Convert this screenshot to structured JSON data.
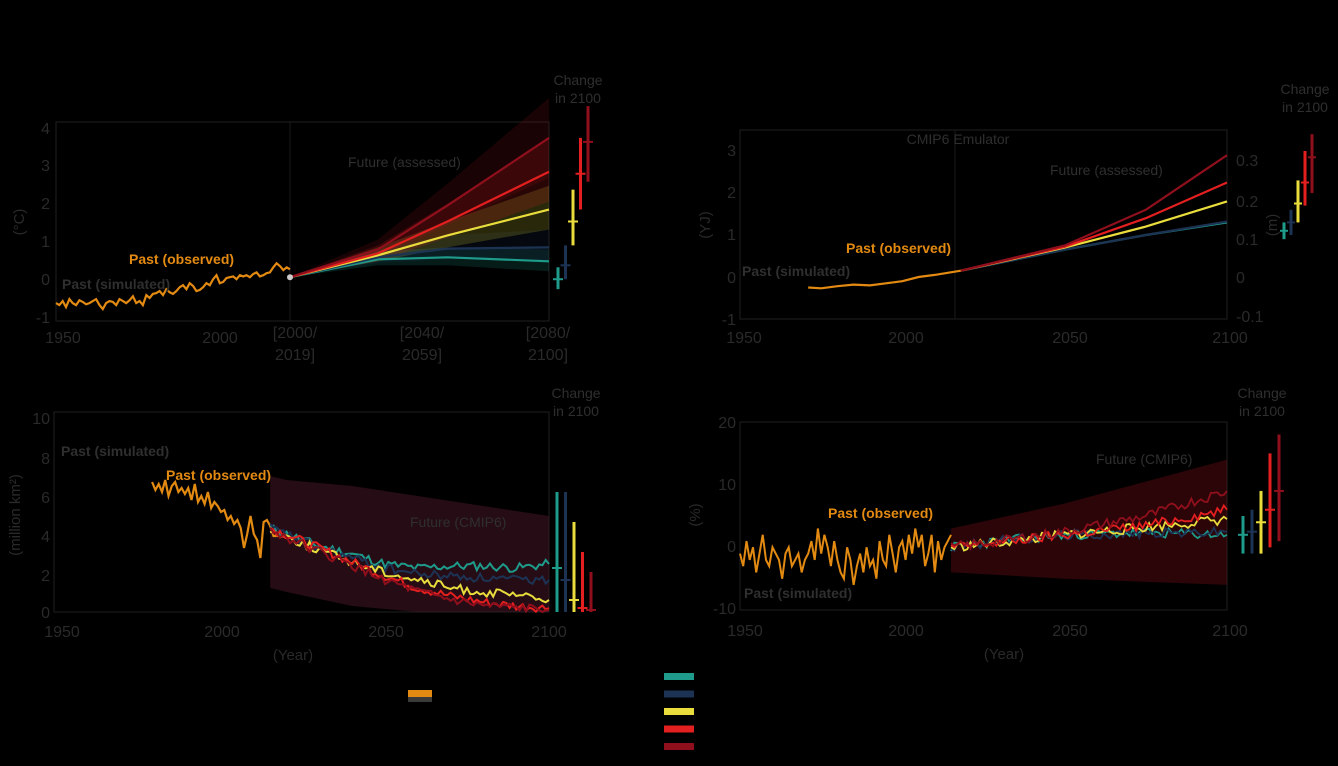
{
  "colors": {
    "observed": "#e38a12",
    "ssp119": "#1e9b8a",
    "ssp126": "#1d3354",
    "ssp245": "#e9dc3d",
    "ssp370": "#e31f1f",
    "ssp585": "#8f0f1c",
    "text": "#2a2a2a",
    "axis": "#1a1a1a"
  },
  "legend": {
    "observed_swatch": "observed",
    "swatches": [
      "ssp119",
      "ssp126",
      "ssp245",
      "ssp370",
      "ssp585"
    ]
  },
  "chart_data": [
    {
      "type": "line",
      "panel": "a",
      "ylabel": "(°C)",
      "ylim": [
        -1,
        4
      ],
      "yticks": [
        "4",
        "3",
        "2",
        "1",
        "0",
        "-1"
      ],
      "xticks_main": [
        "1950",
        "2000"
      ],
      "xticks_periods": [
        [
          "[2000/",
          "2019]"
        ],
        [
          "[2040/",
          "2059]"
        ],
        [
          "[2080/",
          "2100]"
        ]
      ],
      "change_label": [
        "Change",
        "in 2100"
      ],
      "annotations": {
        "past_observed": "Past (observed)",
        "past_simulated": "Past (simulated)",
        "future": "Future (assessed)"
      },
      "observed": {
        "x_start": 1950,
        "x_end": 2020,
        "y": [
          -0.55,
          -0.6,
          -0.5,
          -0.65,
          -0.45,
          -0.55,
          -0.6,
          -0.48,
          -0.52,
          -0.58,
          -0.55,
          -0.5,
          -0.45,
          -0.6,
          -0.7,
          -0.55,
          -0.5,
          -0.52,
          -0.6,
          -0.45,
          -0.5,
          -0.55,
          -0.48,
          -0.38,
          -0.55,
          -0.5,
          -0.6,
          -0.35,
          -0.42,
          -0.32,
          -0.3,
          -0.25,
          -0.35,
          -0.2,
          -0.28,
          -0.32,
          -0.25,
          -0.15,
          -0.1,
          -0.2,
          -0.05,
          -0.12,
          -0.25,
          -0.22,
          -0.15,
          -0.05,
          -0.1,
          0.05,
          0.15,
          -0.05,
          -0.02,
          0.08,
          0.1,
          0.12,
          0.05,
          0.15,
          0.12,
          0.15,
          0.1,
          0.18,
          0.22,
          0.12,
          0.15,
          0.2,
          0.22,
          0.35,
          0.45,
          0.38,
          0.28,
          0.35,
          0.3
        ]
      },
      "scenarios": [
        {
          "key": "ssp119",
          "x": [
            2020,
            2040,
            2060,
            2100
          ],
          "y": [
            0.1,
            0.55,
            0.6,
            0.5
          ],
          "band": [
            [
              0.1,
              0.1
            ],
            [
              0.4,
              0.75
            ],
            [
              0.4,
              0.85
            ],
            [
              0.25,
              0.8
            ]
          ]
        },
        {
          "key": "ssp126",
          "x": [
            2020,
            2040,
            2060,
            2100
          ],
          "y": [
            0.1,
            0.6,
            0.82,
            0.85
          ],
          "band": [
            [
              0.1,
              0.1
            ],
            [
              0.45,
              0.8
            ],
            [
              0.55,
              1.15
            ],
            [
              0.5,
              1.3
            ]
          ]
        },
        {
          "key": "ssp245",
          "x": [
            2020,
            2040,
            2060,
            2100
          ],
          "y": [
            0.1,
            0.65,
            1.15,
            1.8
          ],
          "band": [
            [
              0.1,
              0.1
            ],
            [
              0.5,
              0.85
            ],
            [
              0.85,
              1.5
            ],
            [
              1.3,
              2.4
            ]
          ]
        },
        {
          "key": "ssp370",
          "x": [
            2020,
            2040,
            2060,
            2100
          ],
          "y": [
            0.1,
            0.7,
            1.5,
            2.75
          ],
          "band": [
            [
              0.1,
              0.1
            ],
            [
              0.5,
              0.9
            ],
            [
              1.1,
              1.95
            ],
            [
              2.0,
              3.6
            ]
          ]
        },
        {
          "key": "ssp585",
          "x": [
            2020,
            2040,
            2060,
            2100
          ],
          "y": [
            0.1,
            0.8,
            1.9,
            3.6
          ],
          "band": [
            [
              0.1,
              0.1
            ],
            [
              0.6,
              1.05
            ],
            [
              1.4,
              2.45
            ],
            [
              2.6,
              4.6
            ]
          ]
        }
      ],
      "change_bars": [
        {
          "key": "ssp119",
          "low": -0.2,
          "mid": 0.05,
          "high": 0.35
        },
        {
          "key": "ssp126",
          "low": 0.05,
          "mid": 0.4,
          "high": 0.9
        },
        {
          "key": "ssp245",
          "low": 0.9,
          "mid": 1.5,
          "high": 2.3
        },
        {
          "key": "ssp370",
          "low": 1.8,
          "mid": 2.7,
          "high": 3.6
        },
        {
          "key": "ssp585",
          "low": 2.5,
          "mid": 3.5,
          "high": 4.4
        }
      ]
    },
    {
      "type": "line",
      "panel": "b",
      "ylabel": "(YJ)",
      "ylabel_right": "(m)",
      "ylim": [
        -1,
        3.5
      ],
      "yticks": [
        "3",
        "2",
        "1",
        "0",
        "-1"
      ],
      "yticks_right": [
        "0.3",
        "0.2",
        "0.1",
        "0",
        "-0.1"
      ],
      "xticks": [
        "1950",
        "2000",
        "2050",
        "2100"
      ],
      "change_label": [
        "Change",
        "in 2100"
      ],
      "annotations": {
        "emulator": "CMIP6 Emulator",
        "past_observed": "Past (observed)",
        "past_simulated": "Past (simulated)",
        "future": "Future (assessed)"
      },
      "observed": {
        "x": [
          1971,
          1975,
          1980,
          1985,
          1990,
          1995,
          2000,
          2005,
          2010,
          2018
        ],
        "y": [
          -0.25,
          -0.27,
          -0.22,
          -0.18,
          -0.2,
          -0.15,
          -0.1,
          0.0,
          0.05,
          0.15
        ]
      },
      "scenarios": [
        {
          "key": "ssp119",
          "x": [
            2018,
            2050,
            2075,
            2100
          ],
          "y": [
            0.15,
            0.65,
            1.0,
            1.3
          ]
        },
        {
          "key": "ssp126",
          "x": [
            2018,
            2050,
            2075,
            2100
          ],
          "y": [
            0.15,
            0.65,
            1.0,
            1.32
          ]
        },
        {
          "key": "ssp245",
          "x": [
            2018,
            2050,
            2075,
            2100
          ],
          "y": [
            0.15,
            0.7,
            1.2,
            1.8
          ]
        },
        {
          "key": "ssp370",
          "x": [
            2018,
            2050,
            2075,
            2100
          ],
          "y": [
            0.15,
            0.72,
            1.4,
            2.25
          ]
        },
        {
          "key": "ssp585",
          "x": [
            2018,
            2050,
            2075,
            2100
          ],
          "y": [
            0.15,
            0.75,
            1.6,
            2.9
          ]
        }
      ],
      "change_bars": [
        {
          "key": "ssp119",
          "low": 0.9,
          "mid": 1.1,
          "high": 1.3
        },
        {
          "key": "ssp126",
          "low": 1.0,
          "mid": 1.3,
          "high": 1.6
        },
        {
          "key": "ssp245",
          "low": 1.3,
          "mid": 1.75,
          "high": 2.3
        },
        {
          "key": "ssp370",
          "low": 1.7,
          "mid": 2.25,
          "high": 3.0
        },
        {
          "key": "ssp585",
          "low": 2.0,
          "mid": 2.85,
          "high": 3.4
        }
      ]
    },
    {
      "type": "line",
      "panel": "c",
      "ylabel": "(million km²)",
      "xlabel": "(Year)",
      "ylim": [
        0,
        10
      ],
      "yticks": [
        "10",
        "8",
        "6",
        "4",
        "2",
        "0"
      ],
      "xticks": [
        "1950",
        "2000",
        "2050",
        "2100"
      ],
      "change_label": [
        "Change",
        "in 2100"
      ],
      "annotations": {
        "past_simulated": "Past (simulated)",
        "past_observed": "Past (observed)",
        "future": "Future (CMIP6)"
      },
      "observed": {
        "x_start": 1979,
        "x_end": 2018,
        "y": [
          6.5,
          6.1,
          6.4,
          6.0,
          6.6,
          5.8,
          6.3,
          6.5,
          6.0,
          6.2,
          5.9,
          6.2,
          5.6,
          6.4,
          5.5,
          5.8,
          5.4,
          6.0,
          5.2,
          5.5,
          5.3,
          5.0,
          5.1,
          4.6,
          4.8,
          4.4,
          4.6,
          4.2,
          3.2,
          3.9,
          4.8,
          3.9,
          3.6,
          2.7,
          4.5,
          4.6,
          4.3,
          3.8,
          3.8,
          4.0
        ]
      },
      "band": {
        "x": [
          2015,
          2020,
          2040,
          2060,
          2080,
          2100
        ],
        "low": [
          1.2,
          1.0,
          0.3,
          0,
          0,
          0
        ],
        "high": [
          6.8,
          6.6,
          6.3,
          5.8,
          5.3,
          4.8
        ]
      },
      "scenarios": [
        {
          "key": "ssp119",
          "x": [
            2015,
            2030,
            2040,
            2050,
            2060,
            2070,
            2080,
            2090,
            2100
          ],
          "y": [
            4.2,
            3.3,
            2.9,
            2.4,
            2.2,
            2.3,
            2.3,
            2.2,
            2.4
          ]
        },
        {
          "key": "ssp126",
          "x": [
            2015,
            2030,
            2040,
            2050,
            2060,
            2070,
            2080,
            2090,
            2100
          ],
          "y": [
            4.2,
            3.2,
            2.7,
            2.2,
            1.9,
            1.8,
            1.7,
            1.6,
            1.6
          ]
        },
        {
          "key": "ssp245",
          "x": [
            2015,
            2030,
            2040,
            2050,
            2060,
            2070,
            2080,
            2090,
            2100
          ],
          "y": [
            4.1,
            3.1,
            2.5,
            2.0,
            1.6,
            1.2,
            1.0,
            0.8,
            0.6
          ]
        },
        {
          "key": "ssp370",
          "x": [
            2015,
            2030,
            2040,
            2050,
            2060,
            2070,
            2080,
            2090,
            2100
          ],
          "y": [
            4.2,
            3.2,
            2.5,
            1.8,
            1.2,
            0.8,
            0.5,
            0.3,
            0.2
          ]
        },
        {
          "key": "ssp585",
          "x": [
            2015,
            2030,
            2040,
            2050,
            2060,
            2070,
            2080,
            2090,
            2100
          ],
          "y": [
            4.1,
            3.0,
            2.3,
            1.6,
            1.0,
            0.6,
            0.3,
            0.2,
            0.1
          ]
        }
      ],
      "change_bars": [
        {
          "key": "ssp119",
          "low": 0,
          "mid": 2.2,
          "high": 6.0
        },
        {
          "key": "ssp126",
          "low": 0,
          "mid": 1.6,
          "high": 6.0
        },
        {
          "key": "ssp245",
          "low": 0,
          "mid": 0.6,
          "high": 4.5
        },
        {
          "key": "ssp370",
          "low": 0,
          "mid": 0.2,
          "high": 3.0
        },
        {
          "key": "ssp585",
          "low": 0,
          "mid": 0.1,
          "high": 2.0
        }
      ]
    },
    {
      "type": "line",
      "panel": "d",
      "ylabel": "(%)",
      "xlabel": "(Year)",
      "ylim": [
        -10,
        20
      ],
      "yticks": [
        "20",
        "10",
        "0",
        "-10"
      ],
      "xticks": [
        "1950",
        "2000",
        "2050",
        "2100"
      ],
      "change_label": [
        "Change",
        "in 2100"
      ],
      "annotations": {
        "past_observed": "Past (observed)",
        "past_simulated": "Past (simulated)",
        "future": "Future (CMIP6)"
      },
      "observed": {
        "x_start": 1950,
        "x_end": 2015,
        "y": [
          -1,
          -3,
          1,
          -2,
          0,
          -4,
          -1,
          2,
          -2,
          -3,
          0,
          -1,
          -2,
          -5,
          -1,
          0,
          -3,
          -2,
          -1,
          -4,
          -2,
          -1,
          1,
          -2,
          3,
          -1,
          2,
          0,
          -3,
          1,
          -2,
          -4,
          -5,
          0,
          -2,
          -6,
          -3,
          -1,
          -4,
          0,
          -3,
          -2,
          -5,
          1,
          -2,
          -3,
          2,
          -1,
          -4,
          0,
          1,
          -2,
          2,
          -1,
          3,
          0,
          2,
          -3,
          -1,
          2,
          -4,
          1,
          -2,
          0,
          1,
          2
        ]
      },
      "band": {
        "x": [
          2015,
          2050,
          2100
        ],
        "low": [
          -4,
          -5,
          -6
        ],
        "high": [
          3,
          7,
          14
        ]
      },
      "scenarios": [
        {
          "key": "ssp119",
          "x": [
            2015,
            2030,
            2050,
            2075,
            2100
          ],
          "y": [
            0,
            1,
            2,
            2.3,
            2
          ]
        },
        {
          "key": "ssp126",
          "x": [
            2015,
            2030,
            2050,
            2075,
            2100
          ],
          "y": [
            0,
            1,
            2,
            2.3,
            2.5
          ]
        },
        {
          "key": "ssp245",
          "x": [
            2015,
            2030,
            2050,
            2075,
            2100
          ],
          "y": [
            0,
            0.8,
            2,
            3.2,
            4.5
          ]
        },
        {
          "key": "ssp370",
          "x": [
            2015,
            2030,
            2050,
            2075,
            2100
          ],
          "y": [
            0,
            0.8,
            2,
            3.5,
            6
          ]
        },
        {
          "key": "ssp585",
          "x": [
            2015,
            2030,
            2050,
            2075,
            2100
          ],
          "y": [
            0,
            1,
            2.5,
            5,
            9
          ]
        }
      ],
      "change_bars": [
        {
          "key": "ssp119",
          "low": -1,
          "mid": 2,
          "high": 5
        },
        {
          "key": "ssp126",
          "low": -1,
          "mid": 2.5,
          "high": 6
        },
        {
          "key": "ssp245",
          "low": -1,
          "mid": 4,
          "high": 9
        },
        {
          "key": "ssp370",
          "low": 0,
          "mid": 6,
          "high": 15
        },
        {
          "key": "ssp585",
          "low": 1,
          "mid": 9,
          "high": 18
        }
      ]
    }
  ]
}
